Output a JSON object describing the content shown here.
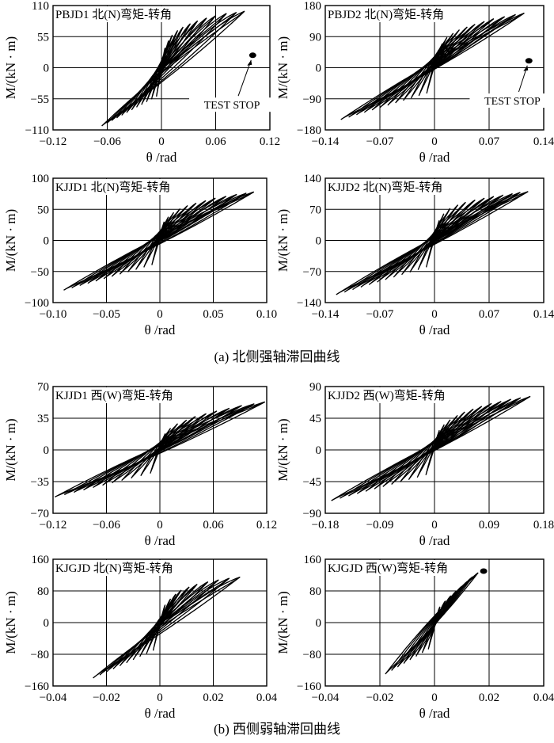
{
  "captions": {
    "a": "(a) 北侧强轴滞回曲线",
    "b": "(b) 西侧弱轴滞回曲线"
  },
  "chart_data": [
    {
      "type": "line",
      "title": "PBJD1 北(N)弯矩-转角",
      "xlabel": "θ /rad",
      "ylabel": "M/(kN · m)",
      "xlim": [
        -0.12,
        0.12
      ],
      "ylim": [
        -110,
        110
      ],
      "xticks": [
        "-0.12",
        "-0.06",
        "0",
        "0.06",
        "0.12"
      ],
      "yticks": [
        "110",
        "55",
        "0",
        "-55",
        "-110"
      ],
      "grid": true,
      "annotation": "TEST STOP",
      "stop_point": [
        0.101,
        22
      ],
      "arrow_from": [
        0.085,
        -50
      ],
      "amps": [
        0.004,
        0.008,
        0.012,
        0.018,
        0.024,
        0.032,
        0.04,
        0.05,
        0.06,
        0.072,
        0.083,
        0.092
      ],
      "peaks": [
        35,
        48,
        58,
        66,
        72,
        78,
        83,
        88,
        92,
        96,
        98,
        100
      ],
      "neg_amp": -0.066,
      "neg_peak": -103,
      "loop_width": 0.55
    },
    {
      "type": "line",
      "title": "PBJD2 北(N)弯矩-转角",
      "xlabel": "θ /rad",
      "ylabel": "M/(kN · m)",
      "xlim": [
        -0.14,
        0.14
      ],
      "ylim": [
        -180,
        180
      ],
      "xticks": [
        "-0.14",
        "-0.07",
        "0",
        "0.07",
        "0.14"
      ],
      "yticks": [
        "180",
        "90",
        "0",
        "-90",
        "-180"
      ],
      "grid": true,
      "annotation": "TEST STOP",
      "stop_point": [
        0.121,
        20
      ],
      "arrow_from": [
        0.108,
        -70
      ],
      "amps": [
        0.005,
        0.01,
        0.016,
        0.024,
        0.032,
        0.042,
        0.052,
        0.064,
        0.076,
        0.09,
        0.104,
        0.115
      ],
      "peaks": [
        50,
        70,
        88,
        100,
        110,
        118,
        126,
        134,
        142,
        148,
        154,
        158
      ],
      "neg_amp": -0.12,
      "neg_peak": -150,
      "loop_width": 0.75
    },
    {
      "type": "line",
      "title": "KJJD1 北(N)弯矩-转角",
      "xlabel": "θ /rad",
      "ylabel": "M/(kN · m)",
      "xlim": [
        -0.1,
        0.1
      ],
      "ylim": [
        -100,
        100
      ],
      "xticks": [
        "-0.10",
        "-0.05",
        "0",
        "0.05",
        "0.10"
      ],
      "yticks": [
        "100",
        "50",
        "0",
        "-50",
        "-100"
      ],
      "grid": true,
      "amps": [
        0.004,
        0.008,
        0.013,
        0.019,
        0.026,
        0.034,
        0.043,
        0.052,
        0.062,
        0.072,
        0.081,
        0.088
      ],
      "peaks": [
        30,
        38,
        45,
        51,
        56,
        60,
        64,
        68,
        71,
        74,
        76,
        78
      ],
      "neg_amp": -0.09,
      "neg_peak": -80,
      "loop_width": 0.7
    },
    {
      "type": "line",
      "title": "KJJD2 北(N)弯矩-转角",
      "xlabel": "θ /rad",
      "ylabel": "M/(kN · m)",
      "xlim": [
        -0.14,
        0.14
      ],
      "ylim": [
        -140,
        140
      ],
      "xticks": [
        "-0.14",
        "-0.07",
        "0",
        "0.07",
        "0.14"
      ],
      "yticks": [
        "140",
        "70",
        "0",
        "-70",
        "-140"
      ],
      "grid": true,
      "amps": [
        0.006,
        0.012,
        0.02,
        0.03,
        0.04,
        0.052,
        0.064,
        0.076,
        0.088,
        0.1,
        0.11,
        0.12
      ],
      "peaks": [
        45,
        60,
        72,
        80,
        86,
        91,
        95,
        99,
        102,
        105,
        108,
        110
      ],
      "neg_amp": -0.126,
      "neg_peak": -122,
      "loop_width": 0.85
    },
    {
      "type": "line",
      "title": "KJJD1 西(W)弯矩-转角",
      "xlabel": "θ /rad",
      "ylabel": "M/(kN · m)",
      "xlim": [
        -0.12,
        0.12
      ],
      "ylim": [
        -70,
        70
      ],
      "xticks": [
        "-0.12",
        "-0.06",
        "0",
        "0.06",
        "0.12"
      ],
      "yticks": [
        "70",
        "35",
        "0",
        "-35",
        "-70"
      ],
      "grid": true,
      "amps": [
        0.006,
        0.012,
        0.02,
        0.03,
        0.04,
        0.052,
        0.064,
        0.078,
        0.092,
        0.106,
        0.118
      ],
      "peaks": [
        18,
        24,
        29,
        33,
        37,
        40,
        43,
        46,
        49,
        51,
        53
      ],
      "neg_amp": -0.118,
      "neg_peak": -52,
      "loop_width": 0.6
    },
    {
      "type": "line",
      "title": "KJJD2 西(W)弯矩-转角",
      "xlabel": "θ /rad",
      "ylabel": "M/(kN · m)",
      "xlim": [
        -0.18,
        0.18
      ],
      "ylim": [
        -90,
        90
      ],
      "xticks": [
        "-0.18",
        "-0.09",
        "0",
        "0.09",
        "0.18"
      ],
      "yticks": [
        "90",
        "45",
        "0",
        "-45",
        "-90"
      ],
      "grid": true,
      "amps": [
        0.008,
        0.016,
        0.026,
        0.038,
        0.05,
        0.064,
        0.078,
        0.094,
        0.11,
        0.126,
        0.142,
        0.158
      ],
      "peaks": [
        28,
        36,
        43,
        49,
        54,
        58,
        62,
        66,
        69,
        72,
        74,
        76
      ],
      "neg_amp": -0.17,
      "neg_peak": -72,
      "loop_width": 0.75
    },
    {
      "type": "line",
      "title": "KJGJD 北(N)弯矩-转角",
      "xlabel": "θ /rad",
      "ylabel": "M/(kN · m)",
      "xlim": [
        -0.04,
        0.04
      ],
      "ylim": [
        -160,
        160
      ],
      "xticks": [
        "-0.04",
        "-0.02",
        "0",
        "0.02",
        "0.04"
      ],
      "yticks": [
        "160",
        "80",
        "0",
        "-80",
        "-160"
      ],
      "grid": true,
      "amps": [
        0.002,
        0.004,
        0.006,
        0.008,
        0.011,
        0.014,
        0.018,
        0.022,
        0.026,
        0.03
      ],
      "peaks": [
        45,
        60,
        72,
        82,
        90,
        97,
        103,
        108,
        112,
        115
      ],
      "neg_amp": -0.025,
      "neg_peak": -140,
      "loop_width": 0.85
    },
    {
      "type": "line",
      "title": "KJGJD 西(W)弯矩-转角",
      "xlabel": "θ /rad",
      "ylabel": "M/(kN · m)",
      "xlim": [
        -0.04,
        0.04
      ],
      "ylim": [
        -160,
        160
      ],
      "xticks": [
        "-0.04",
        "-0.02",
        "0",
        "0.02",
        "0.04"
      ],
      "yticks": [
        "160",
        "80",
        "0",
        "-80",
        "-160"
      ],
      "grid": true,
      "stop_point": [
        0.018,
        130
      ],
      "amps": [
        0.002,
        0.004,
        0.006,
        0.008,
        0.01,
        0.012,
        0.014,
        0.016
      ],
      "peaks": [
        40,
        55,
        68,
        80,
        92,
        104,
        116,
        126
      ],
      "neg_amp": -0.018,
      "neg_peak": -130,
      "loop_width": 0.45
    }
  ]
}
